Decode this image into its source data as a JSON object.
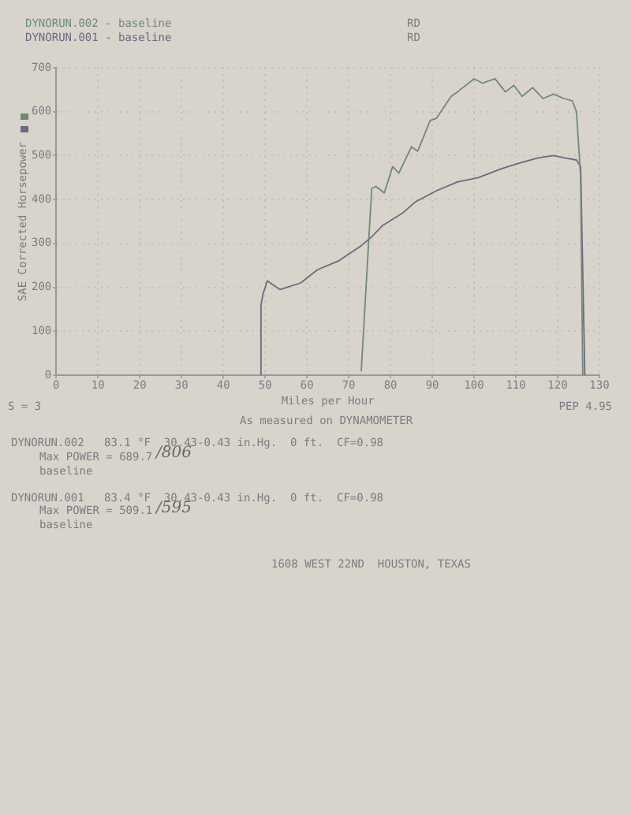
{
  "chart_data": {
    "type": "line",
    "xlabel": "Miles per Hour",
    "ylabel": "SAE Corrected Horsepower",
    "xlim": [
      0,
      130
    ],
    "xticks": [
      0,
      10,
      20,
      30,
      40,
      50,
      60,
      70,
      80,
      90,
      100,
      110,
      120,
      130
    ],
    "ylim": [
      0,
      700
    ],
    "yticks": [
      0,
      100,
      200,
      300,
      400,
      500,
      600,
      700
    ],
    "grid": true,
    "legend": "top left",
    "marker": "none",
    "series": [
      {
        "name": "DYNORUN.002 - baseline",
        "color": "#6f8a78",
        "x": [
          73,
          75.5,
          76.5,
          78.5,
          80.5,
          82,
          85,
          86.5,
          89.5,
          91,
          94.5,
          96,
          100,
          102,
          105,
          107.5,
          109.5,
          111.5,
          114,
          116.5,
          119,
          121.5,
          123.5,
          124.5,
          125.5,
          126
        ],
        "values": [
          10,
          425,
          430,
          415,
          475,
          460,
          520,
          510,
          580,
          585,
          635,
          645,
          675,
          665,
          675,
          645,
          660,
          635,
          655,
          630,
          640,
          630,
          625,
          600,
          450,
          0
        ]
      },
      {
        "name": "DYNORUN.001 - baseline",
        "color": "#6e6880",
        "x": [
          49,
          49,
          49.5,
          50.5,
          53.5,
          58.5,
          62.5,
          67.5,
          73,
          75.5,
          78,
          83,
          86,
          91,
          96,
          101,
          106.5,
          111.5,
          115.5,
          119,
          121.5,
          124.5,
          125.5,
          126.5
        ],
        "values": [
          0,
          160,
          185,
          215,
          195,
          210,
          240,
          260,
          295,
          315,
          340,
          370,
          395,
          420,
          440,
          450,
          470,
          485,
          495,
          500,
          495,
          490,
          475,
          0
        ]
      }
    ],
    "annotations": [
      "RD",
      "RD",
      "S = 3",
      "PEP 4.95",
      "As measured on DYNAMOMETER",
      "DYNORUN.002   83.1 °F  30.43-0.43 in.Hg.  0 ft.  CF=0.98",
      "Max POWER = 689.7",
      "/806",
      "baseline",
      "DYNORUN.001   83.4 °F  30.43-0.43 in.Hg.  0 ft.  CF=0.98",
      "Max POWER = 509.1",
      "/595",
      "baseline",
      "1608 WEST 22ND  HOUSTON, TEXAS"
    ]
  }
}
